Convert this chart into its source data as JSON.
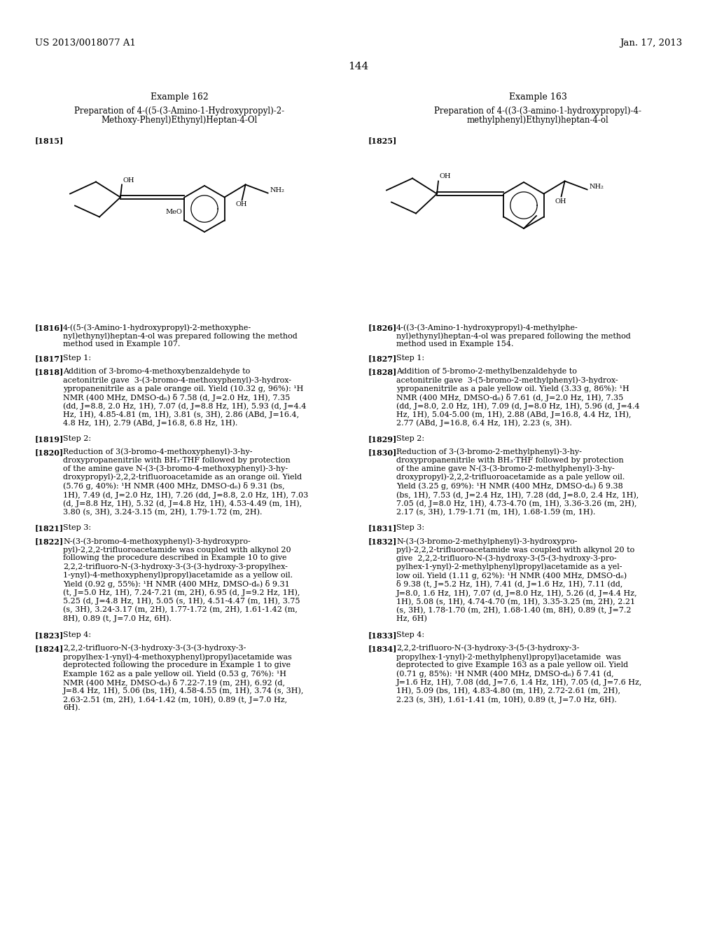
{
  "page_number": "144",
  "left_header": "US 2013/0018077 A1",
  "right_header": "Jan. 17, 2013",
  "background_color": "#ffffff",
  "left_column": {
    "example_title": "Example 162",
    "prep_line1": "Preparation of 4-((5-(3-Amino-1-Hydroxypropyl)-2-",
    "prep_line2": "Methoxy-Phenyl)Ethynyl)Heptan-4-Ol",
    "tag_1815": "[1815]",
    "tag_1816": "[1816]",
    "p1816": "4-((5-(3-Amino-1-hydroxypropyl)-2-methoxyphe-\nnyl)ethynyl)heptan-4-ol was prepared following the method\nmethod used in Example 107.",
    "tag_1817": "[1817]",
    "p1817": "Step 1:",
    "tag_1818": "[1818]",
    "p1818": "Addition of 3-bromo-4-methoxybenzaldehyde to\nacetonitrile gave  3-(3-bromo-4-methoxyphenyl)-3-hydrox-\nypropanenitrile as a pale orange oil. Yield (10.32 g, 96%): ¹H\nNMR (400 MHz, DMSO-d₆) δ 7.58 (d, J=2.0 Hz, 1H), 7.35\n(dd, J=8.8, 2.0 Hz, 1H), 7.07 (d, J=8.8 Hz, 1H), 5.93 (d, J=4.4\nHz, 1H), 4.85-4.81 (m, 1H), 3.81 (s, 3H), 2.86 (ABd, J=16.4,\n4.8 Hz, 1H), 2.79 (ABd, J=16.8, 6.8 Hz, 1H).",
    "tag_1819": "[1819]",
    "p1819": "Step 2:",
    "tag_1820": "[1820]",
    "p1820": "Reduction of 3(3-bromo-4-methoxyphenyl)-3-hy-\ndroxypropanenitrile with BH₃·THF followed by protection\nof the amine gave N-(3-(3-bromo-4-methoxyphenyl)-3-hy-\ndroxypropyl)-2,2,2-trifluoroacetamide as an orange oil. Yield\n(5.76 g, 40%): ¹H NMR (400 MHz, DMSO-d₆) δ 9.31 (bs,\n1H), 7.49 (d, J=2.0 Hz, 1H), 7.26 (dd, J=8.8, 2.0 Hz, 1H), 7.03\n(d, J=8.8 Hz, 1H), 5.32 (d, J=4.8 Hz, 1H), 4.53-4.49 (m, 1H),\n3.80 (s, 3H), 3.24-3.15 (m, 2H), 1.79-1.72 (m, 2H).",
    "tag_1821": "[1821]",
    "p1821": "Step 3:",
    "tag_1822": "[1822]",
    "p1822": "N-(3-(3-bromo-4-methoxyphenyl)-3-hydroxypro-\npyl)-2,2,2-trifluoroacetamide was coupled with alkynol 20\nfollowing the procedure described in Example 10 to give\n2,2,2-trifluoro-N-(3-hydroxy-3-(3-(3-hydroxy-3-propylhex-\n1-ynyl)-4-methoxyphenyl)propyl)acetamide as a yellow oil.\nYield (0.92 g, 55%): ¹H NMR (400 MHz, DMSO-d₆) δ 9.31\n(t, J=5.0 Hz, 1H), 7.24-7.21 (m, 2H), 6.95 (d, J=9.2 Hz, 1H),\n5.25 (d, J=4.8 Hz, 1H), 5.05 (s, 1H), 4.51-4.47 (m, 1H), 3.75\n(s, 3H), 3.24-3.17 (m, 2H), 1.77-1.72 (m, 2H), 1.61-1.42 (m,\n8H), 0.89 (t, J=7.0 Hz, 6H).",
    "tag_1823": "[1823]",
    "p1823": "Step 4:",
    "tag_1824": "[1824]",
    "p1824": "2,2,2-trifluoro-N-(3-hydroxy-3-(3-(3-hydroxy-3-\npropylhex-1-ynyl)-4-methoxyphenyl)propyl)acetamide was\ndeprotected following the procedure in Example 1 to give\nExample 162 as a pale yellow oil. Yield (0.53 g, 76%): ¹H\nNMR (400 MHz, DMSO-d₆) δ 7.22-7.19 (m, 2H), 6.92 (d,\nJ=8.4 Hz, 1H), 5.06 (bs, 1H), 4.58-4.55 (m, 1H), 3.74 (s, 3H),\n2.63-2.51 (m, 2H), 1.64-1.42 (m, 10H), 0.89 (t, J=7.0 Hz,\n6H)."
  },
  "right_column": {
    "example_title": "Example 163",
    "prep_line1": "Preparation of 4-((3-(3-amino-1-hydroxypropyl)-4-",
    "prep_line2": "methylphenyl)Ethynyl)heptan-4-ol",
    "tag_1825": "[1825]",
    "tag_1826": "[1826]",
    "p1826": "4-((3-(3-Amino-1-hydroxypropyl)-4-methylphe-\nnyl)ethynyl)heptan-4-ol was prepared following the method\nmethod used in Example 154.",
    "tag_1827": "[1827]",
    "p1827": "Step 1:",
    "tag_1828": "[1828]",
    "p1828": "Addition of 5-bromo-2-methylbenzaldehyde to\nacetonitrile gave  3-(5-bromo-2-methylphenyl)-3-hydrox-\nypropanenitrile as a pale yellow oil. Yield (3.33 g, 86%): ¹H\nNMR (400 MHz, DMSO-d₆) δ 7.61 (d, J=2.0 Hz, 1H), 7.35\n(dd, J=8.0, 2.0 Hz, 1H), 7.09 (d, J=8.0 Hz, 1H), 5.96 (d, J=4.4\nHz, 1H), 5.04-5.00 (m, 1H), 2.88 (ABd, J=16.8, 4.4 Hz, 1H),\n2.77 (ABd, J=16.8, 6.4 Hz, 1H), 2.23 (s, 3H).",
    "tag_1829": "[1829]",
    "p1829": "Step 2:",
    "tag_1830": "[1830]",
    "p1830": "Reduction of 3-(3-bromo-2-methylphenyl)-3-hy-\ndroxypropanenitrile with BH₃·THF followed by protection\nof the amine gave N-(3-(3-bromo-2-methylphenyl)-3-hy-\ndroxypropyl)-2,2,2-trifluoroacetamide as a pale yellow oil.\nYield (3.25 g, 69%): ¹H NMR (400 MHz, DMSO-d₆) δ 9.38\n(bs, 1H), 7.53 (d, J=2.4 Hz, 1H), 7.28 (dd, J=8.0, 2.4 Hz, 1H),\n7.05 (d, J=8.0 Hz, 1H), 4.73-4.70 (m, 1H), 3.36-3.26 (m, 2H),\n2.17 (s, 3H), 1.79-1.71 (m, 1H), 1.68-1.59 (m, 1H).",
    "tag_1831": "[1831]",
    "p1831": "Step 3:",
    "tag_1832": "[1832]",
    "p1832": "N-(3-(3-bromo-2-methylphenyl)-3-hydroxypro-\npyl)-2,2,2-trifluoroacetamide was coupled with alkynol 20 to\ngive  2,2,2-trifluoro-N-(3-hydroxy-3-(5-(3-hydroxy-3-pro-\npylhex-1-ynyl)-2-methylphenyl)propyl)acetamide as a yel-\nlow oil. Yield (1.11 g, 62%): ¹H NMR (400 MHz, DMSO-d₆)\nδ 9.38 (t, J=5.2 Hz, 1H), 7.41 (d, J=1.6 Hz, 1H), 7.11 (dd,\nJ=8.0, 1.6 Hz, 1H), 7.07 (d, J=8.0 Hz, 1H), 5.26 (d, J=4.4 Hz,\n1H), 5.08 (s, 1H), 4.74-4.70 (m, 1H), 3.35-3.25 (m, 2H), 2.21\n(s, 3H), 1.78-1.70 (m, 2H), 1.68-1.40 (m, 8H), 0.89 (t, J=7.2\nHz, 6H)",
    "tag_1833": "[1833]",
    "p1833": "Step 4:",
    "tag_1834": "[1834]",
    "p1834": "2,2,2-trifluoro-N-(3-hydroxy-3-(5-(3-hydroxy-3-\npropylhex-1-ynyl)-2-methylphenyl)propyl)acetamide  was\ndeprotected to give Example 163 as a pale yellow oil. Yield\n(0.71 g, 85%): ¹H NMR (400 MHz, DMSO-d₆) δ 7.41 (d,\nJ=1.6 Hz, 1H), 7.08 (dd, J=7.6, 1.4 Hz, 1H), 7.05 (d, J=7.6 Hz,\n1H), 5.09 (bs, 1H), 4.83-4.80 (m, 1H), 2.72-2.61 (m, 2H),\n2.23 (s, 3H), 1.61-1.41 (m, 10H), 0.89 (t, J=7.0 Hz, 6H)."
  }
}
